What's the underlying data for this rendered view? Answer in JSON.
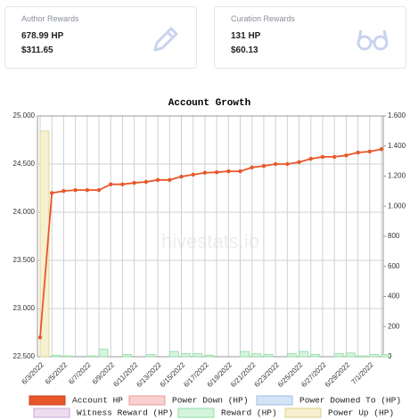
{
  "cards": [
    {
      "title": "Author Rewards",
      "hp": "678.99 HP",
      "usd": "$311.65"
    },
    {
      "title": "Curation Rewards",
      "hp": "131 HP",
      "usd": "$60.13"
    }
  ],
  "chart_data": {
    "type": "combo",
    "title": "Account Growth",
    "watermark": "hivestats.io",
    "grid": true,
    "categories": [
      "6/3/2022",
      null,
      "6/5/2022",
      null,
      "6/7/2022",
      null,
      "6/9/2022",
      null,
      "6/11/2022",
      null,
      "6/13/2022",
      null,
      "6/15/2022",
      null,
      "6/17/2022",
      null,
      "6/19/2022",
      null,
      "6/21/2022",
      null,
      "6/23/2022",
      null,
      "6/25/2022",
      null,
      "6/27/2022",
      null,
      "6/29/2022",
      null,
      "7/1/2022",
      null
    ],
    "ylim": [
      22500,
      25000
    ],
    "yticks": [
      {
        "value": 22500,
        "label": "22.500"
      },
      {
        "value": 23000,
        "label": "23.000"
      },
      {
        "value": 23500,
        "label": "23.500"
      },
      {
        "value": 24000,
        "label": "24.000"
      },
      {
        "value": 24500,
        "label": "24.500"
      },
      {
        "value": 25000,
        "label": "25.000"
      }
    ],
    "y2lim": [
      0,
      1600
    ],
    "y2ticks": [
      0,
      200,
      400,
      600,
      800,
      {
        "value": 1000,
        "label": "1.000"
      },
      {
        "value": 1200,
        "label": "1.200"
      },
      {
        "value": 1400,
        "label": "1.400"
      },
      {
        "value": 1600,
        "label": "1.600"
      }
    ],
    "series": [
      {
        "name": "Account HP",
        "type": "line",
        "axis": "y",
        "color": "#e8572a",
        "border": "#c9401a",
        "values": [
          22700,
          24200,
          24220,
          24230,
          24230,
          24230,
          24290,
          24290,
          24305,
          24315,
          24335,
          24335,
          24370,
          24390,
          24410,
          24415,
          24425,
          24425,
          24465,
          24480,
          24500,
          24500,
          24520,
          24555,
          24575,
          24575,
          24590,
          24620,
          24630,
          24655
        ]
      },
      {
        "name": "Power Down (HP)",
        "type": "bar",
        "axis": "y2",
        "color": "#f8d0d0",
        "border": "#e89a9a",
        "values": [
          0,
          0,
          0,
          0,
          0,
          0,
          0,
          0,
          0,
          0,
          0,
          0,
          0,
          0,
          0,
          0,
          0,
          0,
          0,
          0,
          0,
          0,
          0,
          0,
          0,
          0,
          0,
          0,
          0,
          0
        ]
      },
      {
        "name": "Power Downed To (HP)",
        "type": "bar",
        "axis": "y2",
        "color": "#d4e4f6",
        "border": "#9cbfe6",
        "values": [
          0,
          0,
          0,
          0,
          0,
          0,
          0,
          0,
          0,
          0,
          0,
          0,
          0,
          0,
          0,
          0,
          0,
          0,
          0,
          0,
          0,
          0,
          0,
          0,
          0,
          0,
          0,
          0,
          0,
          0
        ]
      },
      {
        "name": "Witness Reward (HP)",
        "type": "bar",
        "axis": "y2",
        "color": "#ecdcf0",
        "border": "#c8a8d4",
        "values": [
          0,
          0,
          0,
          0,
          0,
          0,
          0,
          0,
          0,
          0,
          0,
          0,
          0,
          0,
          0,
          0,
          0,
          0,
          0,
          0,
          0,
          0,
          0,
          0,
          0,
          0,
          0,
          0,
          0,
          0
        ]
      },
      {
        "name": "Reward (HP)",
        "type": "bar",
        "axis": "y2",
        "color": "#d4f4dc",
        "border": "#8fdca4",
        "values": [
          0,
          10,
          5,
          0,
          5,
          50,
          0,
          15,
          0,
          15,
          0,
          35,
          20,
          20,
          10,
          0,
          0,
          35,
          20,
          15,
          0,
          20,
          35,
          15,
          0,
          20,
          25,
          5,
          15,
          15
        ]
      },
      {
        "name": "Power Up (HP)",
        "type": "bar",
        "axis": "y2",
        "color": "#f6f0d0",
        "border": "#dccf8c",
        "values": [
          1500,
          0,
          0,
          0,
          0,
          0,
          0,
          0,
          0,
          0,
          0,
          0,
          0,
          0,
          0,
          0,
          0,
          0,
          0,
          0,
          0,
          0,
          0,
          0,
          0,
          0,
          0,
          0,
          0,
          0
        ]
      }
    ]
  }
}
